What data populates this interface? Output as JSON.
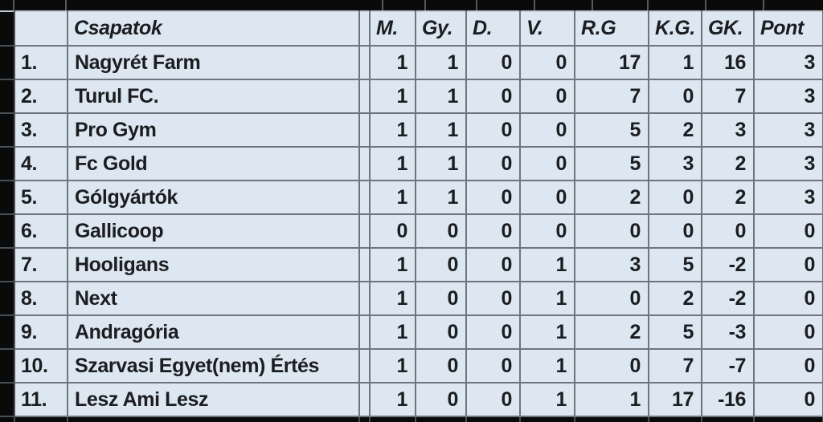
{
  "table": {
    "header": {
      "rank_label": "",
      "team_label": "Csapatok",
      "stat_labels": [
        "M.",
        "Gy.",
        "D.",
        "V.",
        "R.G",
        "K.G.",
        "GK.",
        "Pont"
      ]
    },
    "rows": [
      {
        "rank": "1.",
        "team": "Nagyrét Farm",
        "stats": [
          "1",
          "1",
          "0",
          "0",
          "17",
          "1",
          "16",
          "3"
        ]
      },
      {
        "rank": "2.",
        "team": "Turul FC.",
        "stats": [
          "1",
          "1",
          "0",
          "0",
          "7",
          "0",
          "7",
          "3"
        ]
      },
      {
        "rank": "3.",
        "team": "Pro Gym",
        "stats": [
          "1",
          "1",
          "0",
          "0",
          "5",
          "2",
          "3",
          "3"
        ]
      },
      {
        "rank": "4.",
        "team": "Fc Gold",
        "stats": [
          "1",
          "1",
          "0",
          "0",
          "5",
          "3",
          "2",
          "3"
        ]
      },
      {
        "rank": "5.",
        "team": "Gólgyártók",
        "stats": [
          "1",
          "1",
          "0",
          "0",
          "2",
          "0",
          "2",
          "3"
        ]
      },
      {
        "rank": "6.",
        "team": "Gallicoop",
        "stats": [
          "0",
          "0",
          "0",
          "0",
          "0",
          "0",
          "0",
          "0"
        ]
      },
      {
        "rank": "7.",
        "team": "Hooligans",
        "stats": [
          "1",
          "0",
          "0",
          "1",
          "3",
          "5",
          "-2",
          "0"
        ]
      },
      {
        "rank": "8.",
        "team": "Next",
        "stats": [
          "1",
          "0",
          "0",
          "1",
          "0",
          "2",
          "-2",
          "0"
        ]
      },
      {
        "rank": "9.",
        "team": "Andragória",
        "stats": [
          "1",
          "0",
          "0",
          "1",
          "2",
          "5",
          "-3",
          "0"
        ]
      },
      {
        "rank": "10.",
        "team": "Szarvasi Egyet(nem) Értés",
        "stats": [
          "1",
          "0",
          "0",
          "1",
          "0",
          "7",
          "-7",
          "0"
        ]
      },
      {
        "rank": "11.",
        "team": "Lesz Ami Lesz",
        "stats": [
          "1",
          "0",
          "0",
          "1",
          "1",
          "17",
          "-16",
          "0"
        ]
      }
    ]
  },
  "colors": {
    "cell_bg": "#dce7f2",
    "grid_line": "#6f757d",
    "light_line": "#c2cad2",
    "text": "#1b1d20",
    "frame": "#0a0a0a"
  }
}
